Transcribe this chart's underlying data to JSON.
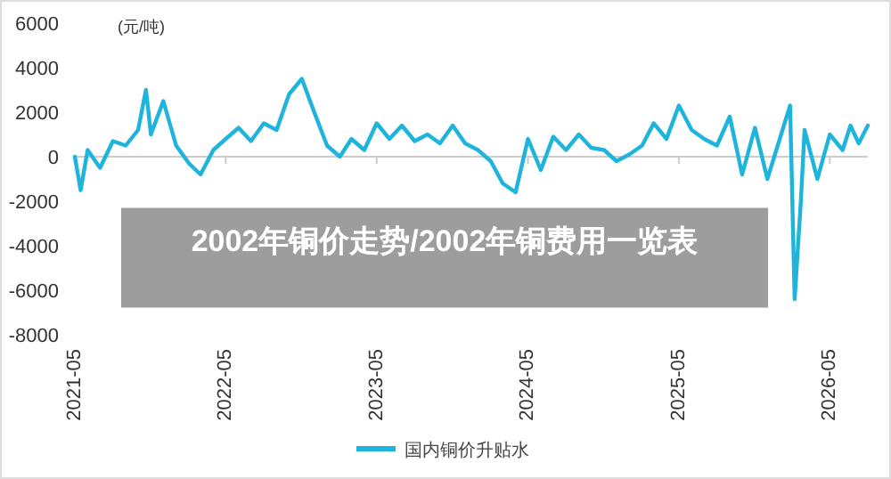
{
  "chart_data": {
    "type": "line",
    "title": "2002年铜价走势/2002年铜费用一览表",
    "ylabel": "(元/吨)",
    "x": [
      "2021-05-01",
      "2021-05-15",
      "2021-06",
      "2021-07",
      "2021-08",
      "2021-09",
      "2021-10",
      "2021-10-20",
      "2021-11",
      "2021-12",
      "2022-01",
      "2022-02",
      "2022-03",
      "2022-04",
      "2022-05",
      "2022-06",
      "2022-07",
      "2022-08",
      "2022-09",
      "2022-10",
      "2022-11",
      "2022-12",
      "2023-01",
      "2023-02",
      "2023-03",
      "2023-04",
      "2023-05",
      "2023-06",
      "2023-07",
      "2023-08",
      "2023-09",
      "2023-10",
      "2023-11",
      "2023-12",
      "2024-01",
      "2024-02",
      "2024-03",
      "2024-04",
      "2024-05",
      "2024-06",
      "2024-07",
      "2024-08",
      "2024-09",
      "2024-10",
      "2024-11",
      "2024-12",
      "2025-01",
      "2025-02",
      "2025-03",
      "2025-04",
      "2025-05",
      "2025-06",
      "2025-07",
      "2025-08",
      "2025-09",
      "2025-10",
      "2025-11",
      "2025-12",
      "2026-01-25",
      "2026-02-05",
      "2026-02-20",
      "2026-03",
      "2026-04",
      "2026-05",
      "2026-06",
      "2026-06-20",
      "2026-07-10",
      "2026-08"
    ],
    "series": [
      {
        "name": "国内铜价升贴水",
        "color": "#1eb4dc",
        "values": [
          0,
          -1500,
          300,
          -500,
          700,
          500,
          1200,
          3000,
          1000,
          2500,
          500,
          -300,
          -800,
          300,
          800,
          1300,
          700,
          1500,
          1200,
          2800,
          3500,
          2000,
          500,
          0,
          800,
          300,
          1500,
          800,
          1400,
          700,
          1000,
          600,
          1400,
          600,
          300,
          -200,
          -1200,
          -1600,
          800,
          -600,
          900,
          300,
          1000,
          400,
          300,
          -200,
          100,
          500,
          1500,
          800,
          2300,
          1200,
          800,
          500,
          1800,
          -800,
          1300,
          -1000,
          2300,
          -6400,
          -2000,
          1200,
          -1000,
          1000,
          300,
          1400,
          600,
          1400
        ]
      }
    ],
    "xlim": [
      "2021-05",
      "2026-08"
    ],
    "xticks": [
      {
        "value": "2021-05",
        "label": "2021-05"
      },
      {
        "value": "2022-05",
        "label": "2022-05"
      },
      {
        "value": "2023-05",
        "label": "2023-05"
      },
      {
        "value": "2024-05",
        "label": "2024-05"
      },
      {
        "value": "2025-05",
        "label": "2025-05"
      },
      {
        "value": "2026-05",
        "label": "2026-05"
      }
    ],
    "ylim": [
      -8000,
      6000
    ],
    "yticks": [
      -8000,
      -6000,
      -4000,
      -2000,
      0,
      2000,
      4000,
      6000
    ],
    "ref_lines": [
      {
        "axis": "y",
        "value": 0,
        "color": "#cccccc"
      }
    ],
    "grid": false,
    "legend": "bottom",
    "marker": "none",
    "line_style": "solid"
  }
}
